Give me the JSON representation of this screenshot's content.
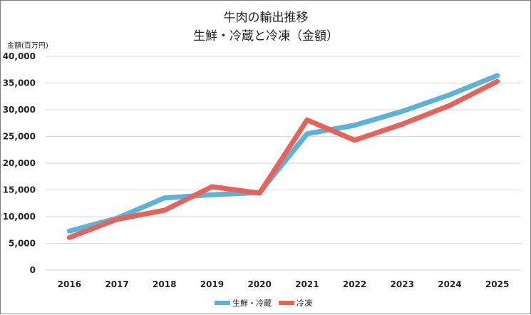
{
  "chart_data": {
    "type": "line",
    "title": [
      "牛肉の輸出推移",
      "生鮮・冷蔵と冷凍（金額）"
    ],
    "ylabel": "金額(百万円)",
    "xlabel": "",
    "categories": [
      "2016",
      "2017",
      "2018",
      "2019",
      "2020",
      "2021",
      "2022",
      "2023",
      "2024",
      "2025"
    ],
    "ylim": [
      0,
      40000
    ],
    "yticks": [
      0,
      5000,
      10000,
      15000,
      20000,
      25000,
      30000,
      35000,
      40000
    ],
    "ytick_labels": [
      "0",
      "5,000",
      "10,000",
      "15,000",
      "20,000",
      "25,000",
      "30,000",
      "35,000",
      "40,000"
    ],
    "grid": true,
    "legend_position": "bottom",
    "series": [
      {
        "name": "生鮮・冷蔵",
        "color": "#5cb3d9",
        "values": [
          7300,
          9700,
          13500,
          14100,
          14500,
          25500,
          27100,
          29700,
          32800,
          36400
        ]
      },
      {
        "name": "冷凍",
        "color": "#e8625a",
        "values": [
          6100,
          9500,
          11200,
          15600,
          14400,
          28100,
          24300,
          27300,
          30800,
          35300
        ]
      }
    ]
  }
}
